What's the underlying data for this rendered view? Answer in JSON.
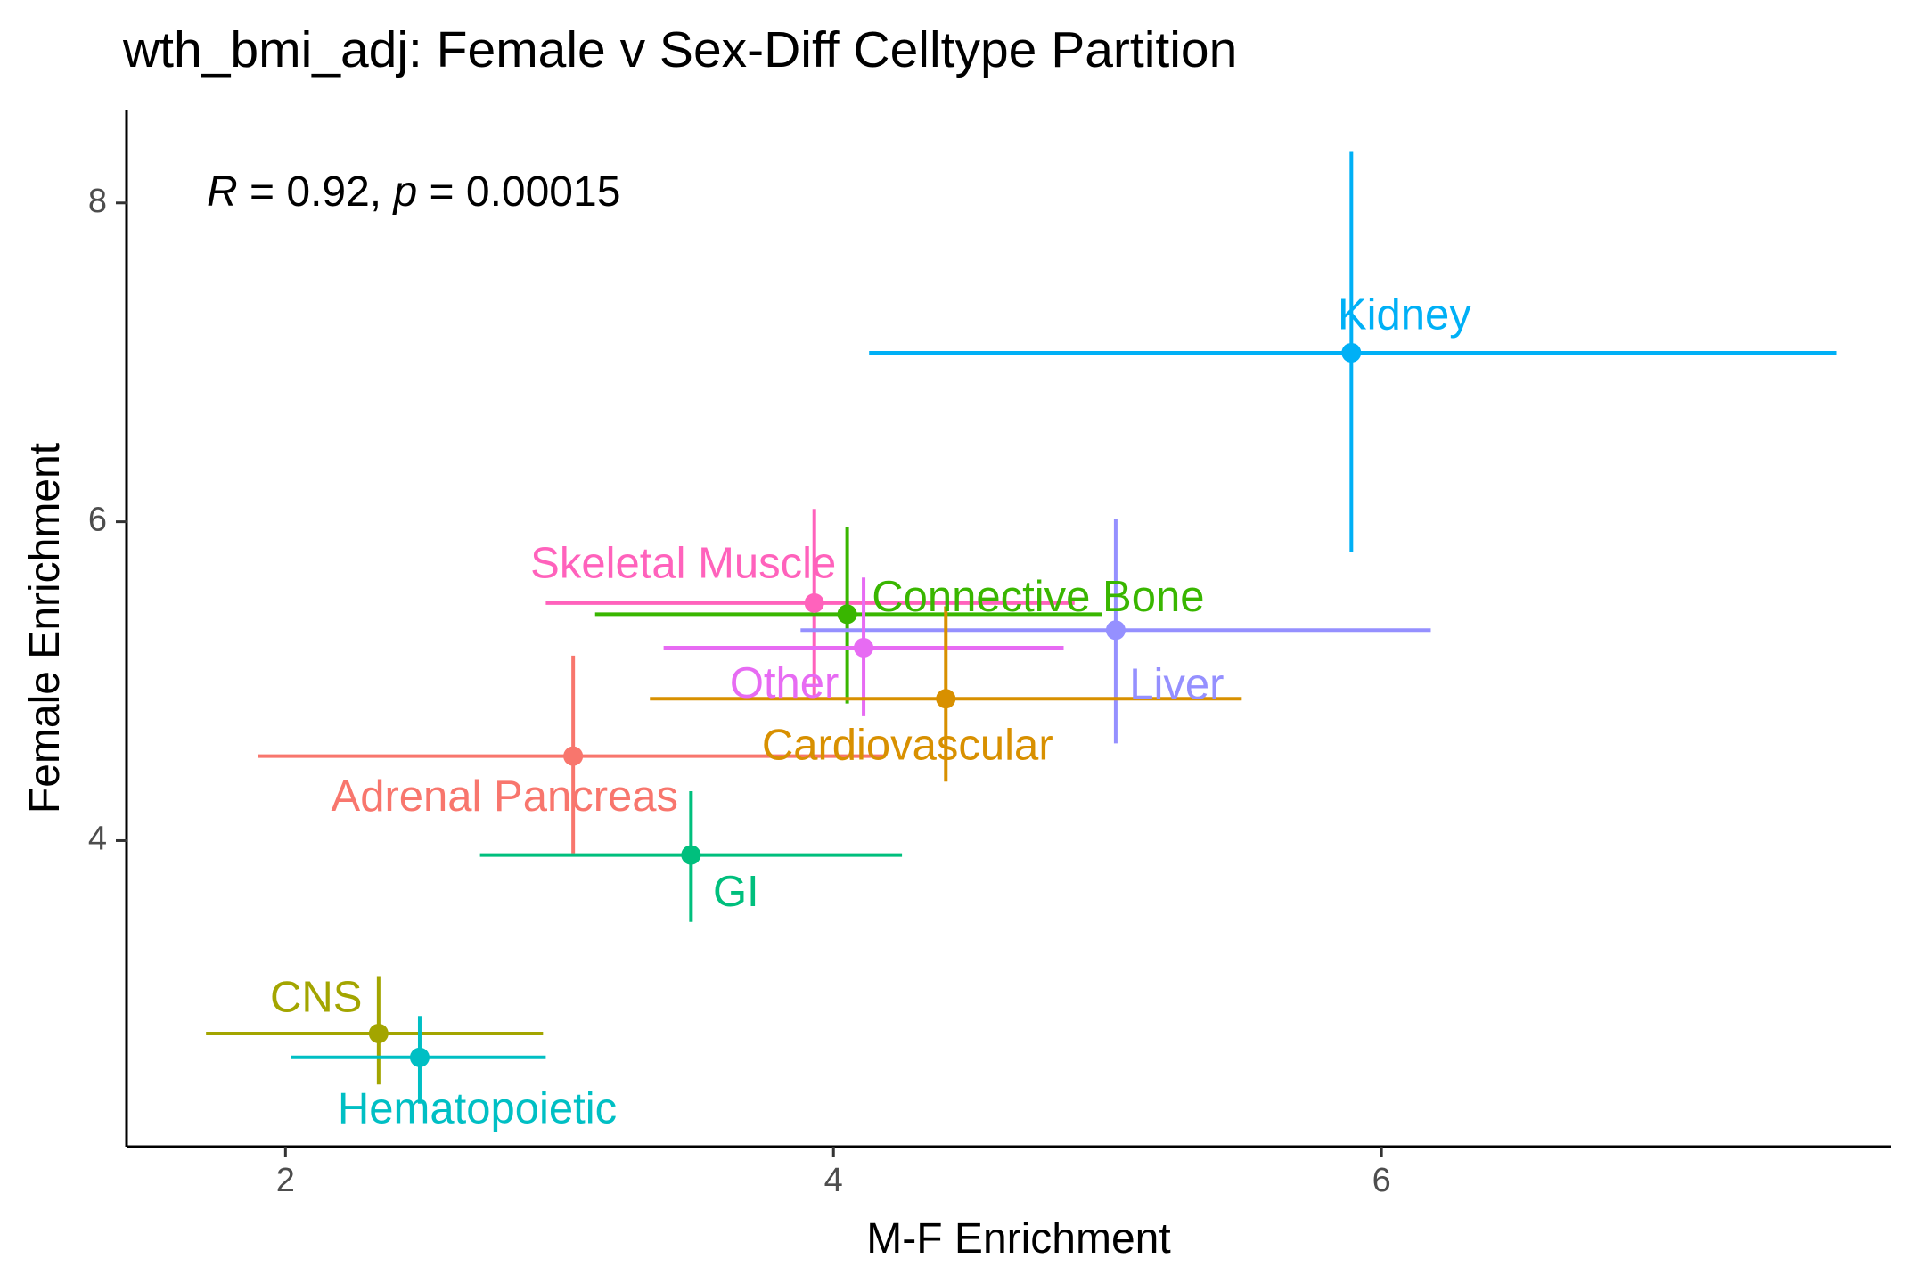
{
  "chart_data": {
    "type": "scatter",
    "title": "wth_bmi_adj: Female v Sex-Diff Celltype Partition",
    "xlabel": "M-F Enrichment",
    "ylabel": "Female Enrichment",
    "xlim": [
      1.42,
      7.86
    ],
    "ylim": [
      2.08,
      8.58
    ],
    "x_ticks": [
      2,
      4,
      6
    ],
    "y_ticks": [
      4,
      6,
      8
    ],
    "grid": false,
    "annotation": {
      "r_symbol": "R",
      "r_text": " = 0.92, ",
      "p_symbol": "p",
      "p_text": " = 0.00015"
    },
    "points": [
      {
        "label": "Kidney",
        "x": 5.89,
        "y": 7.06,
        "xmin": 4.13,
        "xmax": 7.66,
        "ymin": 5.81,
        "ymax": 8.32,
        "color": "#00B0F6",
        "label_anchor": "start",
        "label_dx": -0.05,
        "label_dy": 0.22
      },
      {
        "label": "Skeletal Muscle",
        "x": 3.93,
        "y": 5.49,
        "xmin": 2.95,
        "xmax": 4.88,
        "ymin": 4.91,
        "ymax": 6.08,
        "color": "#FF62BC",
        "label_anchor": "end",
        "label_dx": 0.08,
        "label_dy": 0.23
      },
      {
        "label": "Connective Bone",
        "x": 4.05,
        "y": 5.42,
        "xmin": 3.13,
        "xmax": 4.98,
        "ymin": 4.86,
        "ymax": 5.97,
        "color": "#39B600",
        "label_anchor": "start",
        "label_dx": 0.09,
        "label_dy": 0.09
      },
      {
        "label": "Liver",
        "x": 5.03,
        "y": 5.32,
        "xmin": 3.88,
        "xmax": 6.18,
        "ymin": 4.61,
        "ymax": 6.02,
        "color": "#9590FF",
        "label_anchor": "start",
        "label_dx": 0.05,
        "label_dy": -0.36
      },
      {
        "label": "Other",
        "x": 4.11,
        "y": 5.21,
        "xmin": 3.38,
        "xmax": 4.84,
        "ymin": 4.78,
        "ymax": 5.65,
        "color": "#E76BF3",
        "label_anchor": "end",
        "label_dx": -0.09,
        "label_dy": -0.24
      },
      {
        "label": "Cardiovascular",
        "x": 4.41,
        "y": 4.89,
        "xmin": 3.33,
        "xmax": 5.49,
        "ymin": 4.37,
        "ymax": 5.47,
        "color": "#D89000",
        "label_anchor": "middle",
        "label_dx": -0.14,
        "label_dy": -0.31
      },
      {
        "label": "Adrenal Pancreas",
        "x": 3.05,
        "y": 4.53,
        "xmin": 1.9,
        "xmax": 4.19,
        "ymin": 3.92,
        "ymax": 5.16,
        "color": "#F8766D",
        "label_anchor": "middle",
        "label_dx": -0.25,
        "label_dy": -0.27
      },
      {
        "label": "GI",
        "x": 3.48,
        "y": 3.91,
        "xmin": 2.71,
        "xmax": 4.25,
        "ymin": 3.49,
        "ymax": 4.31,
        "color": "#00BF7D",
        "label_anchor": "start",
        "label_dx": 0.08,
        "label_dy": -0.25
      },
      {
        "label": "CNS",
        "x": 2.34,
        "y": 2.79,
        "xmin": 1.71,
        "xmax": 2.94,
        "ymin": 2.47,
        "ymax": 3.15,
        "color": "#A3A500",
        "label_anchor": "end",
        "label_dx": -0.06,
        "label_dy": 0.21
      },
      {
        "label": "Hematopoietic",
        "x": 2.49,
        "y": 2.64,
        "xmin": 2.02,
        "xmax": 2.95,
        "ymin": 2.35,
        "ymax": 2.9,
        "color": "#00BFC4",
        "label_anchor": "middle",
        "label_dx": 0.21,
        "label_dy": -0.34
      }
    ]
  }
}
